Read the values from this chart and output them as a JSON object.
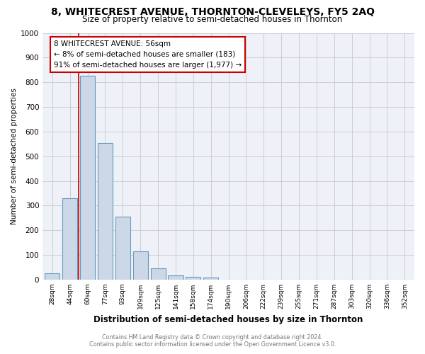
{
  "title": "8, WHITECREST AVENUE, THORNTON-CLEVELEYS, FY5 2AQ",
  "subtitle": "Size of property relative to semi-detached houses in Thornton",
  "xlabel": "Distribution of semi-detached houses by size in Thornton",
  "ylabel": "Number of semi-detached properties",
  "bar_labels": [
    "28sqm",
    "44sqm",
    "60sqm",
    "77sqm",
    "93sqm",
    "109sqm",
    "125sqm",
    "141sqm",
    "158sqm",
    "174sqm",
    "190sqm",
    "206sqm",
    "222sqm",
    "239sqm",
    "255sqm",
    "271sqm",
    "287sqm",
    "303sqm",
    "320sqm",
    "336sqm",
    "352sqm"
  ],
  "bar_heights": [
    25,
    330,
    825,
    555,
    255,
    115,
    45,
    18,
    12,
    8,
    0,
    0,
    0,
    0,
    0,
    0,
    0,
    0,
    0,
    0,
    0
  ],
  "bar_color": "#ccd8e8",
  "bar_edge_color": "#6699bb",
  "red_line_x": 1.5,
  "annotation_title": "8 WHITECREST AVENUE: 56sqm",
  "annotation_line1": "← 8% of semi-detached houses are smaller (183)",
  "annotation_line2": "91% of semi-detached houses are larger (1,977) →",
  "annotation_box_color": "#ffffff",
  "annotation_box_edge": "#cc0000",
  "footer_line1": "Contains HM Land Registry data © Crown copyright and database right 2024.",
  "footer_line2": "Contains public sector information licensed under the Open Government Licence v3.0.",
  "ylim": [
    0,
    1000
  ],
  "yticks": [
    0,
    100,
    200,
    300,
    400,
    500,
    600,
    700,
    800,
    900,
    1000
  ],
  "bg_color": "#eef2f8",
  "grid_color": "#c8c8cc",
  "title_fontsize": 10,
  "subtitle_fontsize": 8.5
}
